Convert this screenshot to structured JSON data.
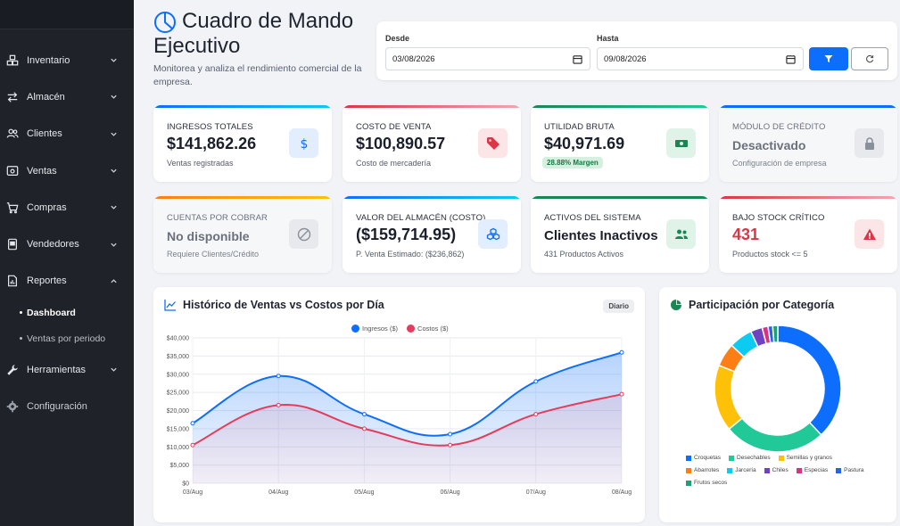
{
  "sidebar": {
    "items": [
      {
        "label": "Inventario",
        "icon": "boxes-icon",
        "expanded": false
      },
      {
        "label": "Almacén",
        "icon": "arrows-exchange-icon",
        "expanded": false
      },
      {
        "label": "Clientes",
        "icon": "users-icon",
        "expanded": false
      },
      {
        "label": "Ventas",
        "icon": "cash-register-icon",
        "expanded": false
      },
      {
        "label": "Compras",
        "icon": "cart-icon",
        "expanded": false
      },
      {
        "label": "Vendedores",
        "icon": "id-card-icon",
        "expanded": false
      },
      {
        "label": "Reportes",
        "icon": "report-icon",
        "expanded": true
      },
      {
        "label": "Herramientas",
        "icon": "wrench-icon",
        "expanded": false
      },
      {
        "label": "Configuración",
        "icon": "gear-icon",
        "expanded": false
      }
    ],
    "reportes_sub": [
      {
        "label": "Dashboard",
        "active": true
      },
      {
        "label": "Ventas por periodo",
        "active": false
      }
    ]
  },
  "header": {
    "title_line1": "Cuadro de Mando",
    "title_line2": "Ejecutivo",
    "subtitle": "Monitorea y analiza el rendimiento comercial de la empresa."
  },
  "filters": {
    "from_label": "Desde",
    "from_value": "03/08/2026",
    "to_label": "Hasta",
    "to_value": "09/08/2026"
  },
  "kpis": [
    {
      "label": "INGRESOS TOTALES",
      "value": "$141,862.26",
      "foot": "Ventas registradas",
      "accent": "#0dcaf0",
      "icon": "dollar-icon",
      "icon_color": "#0d6efd",
      "icon_bg": "#e2edfd"
    },
    {
      "label": "COSTO DE VENTA",
      "value": "$100,890.57",
      "foot": "Costo de mercadería",
      "accent": "#e35d6a",
      "icon": "tag-icon",
      "icon_color": "#dc3545",
      "icon_bg": "#fbe5e7"
    },
    {
      "label": "UTILIDAD BRUTA",
      "value": "$40,971.69",
      "badge": "28.88% Margen",
      "accent": "#198754",
      "icon": "money-bill-icon",
      "icon_color": "#198754",
      "icon_bg": "#dff3e8"
    },
    {
      "label": "MÓDULO DE CRÉDITO",
      "value": "Desactivado",
      "foot": "Configuración de empresa",
      "accent": "#0d6efd",
      "icon": "lock-icon",
      "icon_color": "#8a9099",
      "icon_bg": "#e7e9ec",
      "muted": true
    },
    {
      "label": "CUENTAS POR COBRAR",
      "value": "No disponible",
      "foot": "Requiere Clientes/Crédito",
      "accent": "#fd7e14",
      "icon": "ban-icon",
      "icon_color": "#8a9099",
      "icon_bg": "#e7e9ec",
      "muted": true
    },
    {
      "label": "VALOR DEL ALMACÉN (COSTO)",
      "value": "($159,714.95)",
      "foot": "P. Venta Estimado: ($236,862)",
      "accent": "#0dcaf0",
      "icon": "cubes-icon",
      "icon_color": "#0d6efd",
      "icon_bg": "#e2edfd"
    },
    {
      "label": "ACTIVOS DEL SISTEMA",
      "value": "Clientes Inactivos",
      "foot": "431 Productos Activos",
      "accent": "#198754",
      "icon": "users-icon",
      "icon_color": "#198754",
      "icon_bg": "#dff3e8"
    },
    {
      "label": "BAJO STOCK CRÍTICO",
      "value": "431",
      "foot": "Productos stock <= 5",
      "accent": "#e35d6a",
      "icon": "warning-icon",
      "icon_color": "#dc3545",
      "icon_bg": "#fbe5e7",
      "value_color": "#dc3545"
    }
  ],
  "sales_panel": {
    "title": "Histórico de Ventas vs Costos por Día",
    "chip": "Diario"
  },
  "category_panel": {
    "title": "Participación por Categoría"
  },
  "chart_data": [
    {
      "type": "line",
      "categories": [
        "03/Aug",
        "04/Aug",
        "05/Aug",
        "06/Aug",
        "07/Aug",
        "08/Aug"
      ],
      "series": [
        {
          "name": "Ingresos ($)",
          "values": [
            16500,
            29500,
            19000,
            13500,
            28000,
            36000
          ],
          "color": "#0d6efd"
        },
        {
          "name": "Costos ($)",
          "values": [
            10500,
            21500,
            15000,
            10500,
            19000,
            24500
          ],
          "color": "#e23d5b"
        }
      ],
      "yticks": [
        "$0",
        "$5,000",
        "$10,000",
        "$15,000",
        "$20,000",
        "$25,000",
        "$30,000",
        "$35,000",
        "$40,000"
      ],
      "ylim": [
        0,
        40000
      ],
      "legend": "top-center",
      "grid": true
    },
    {
      "type": "pie",
      "donut": true,
      "categories": [
        "Croquetas",
        "Desechables",
        "Semillas y granos",
        "Abarrotes",
        "Jarcería",
        "Chiles",
        "Especias",
        "Pastura",
        "Frutos secos"
      ],
      "values": [
        38,
        26,
        17,
        6,
        6,
        3,
        1.5,
        1.2,
        1.3
      ],
      "colors": [
        "#0d6efd",
        "#20c997",
        "#ffc107",
        "#fd7e14",
        "#0dcaf0",
        "#6f42c1",
        "#d63384",
        "#2563eb",
        "#1aa179"
      ],
      "legend": "bottom"
    }
  ]
}
